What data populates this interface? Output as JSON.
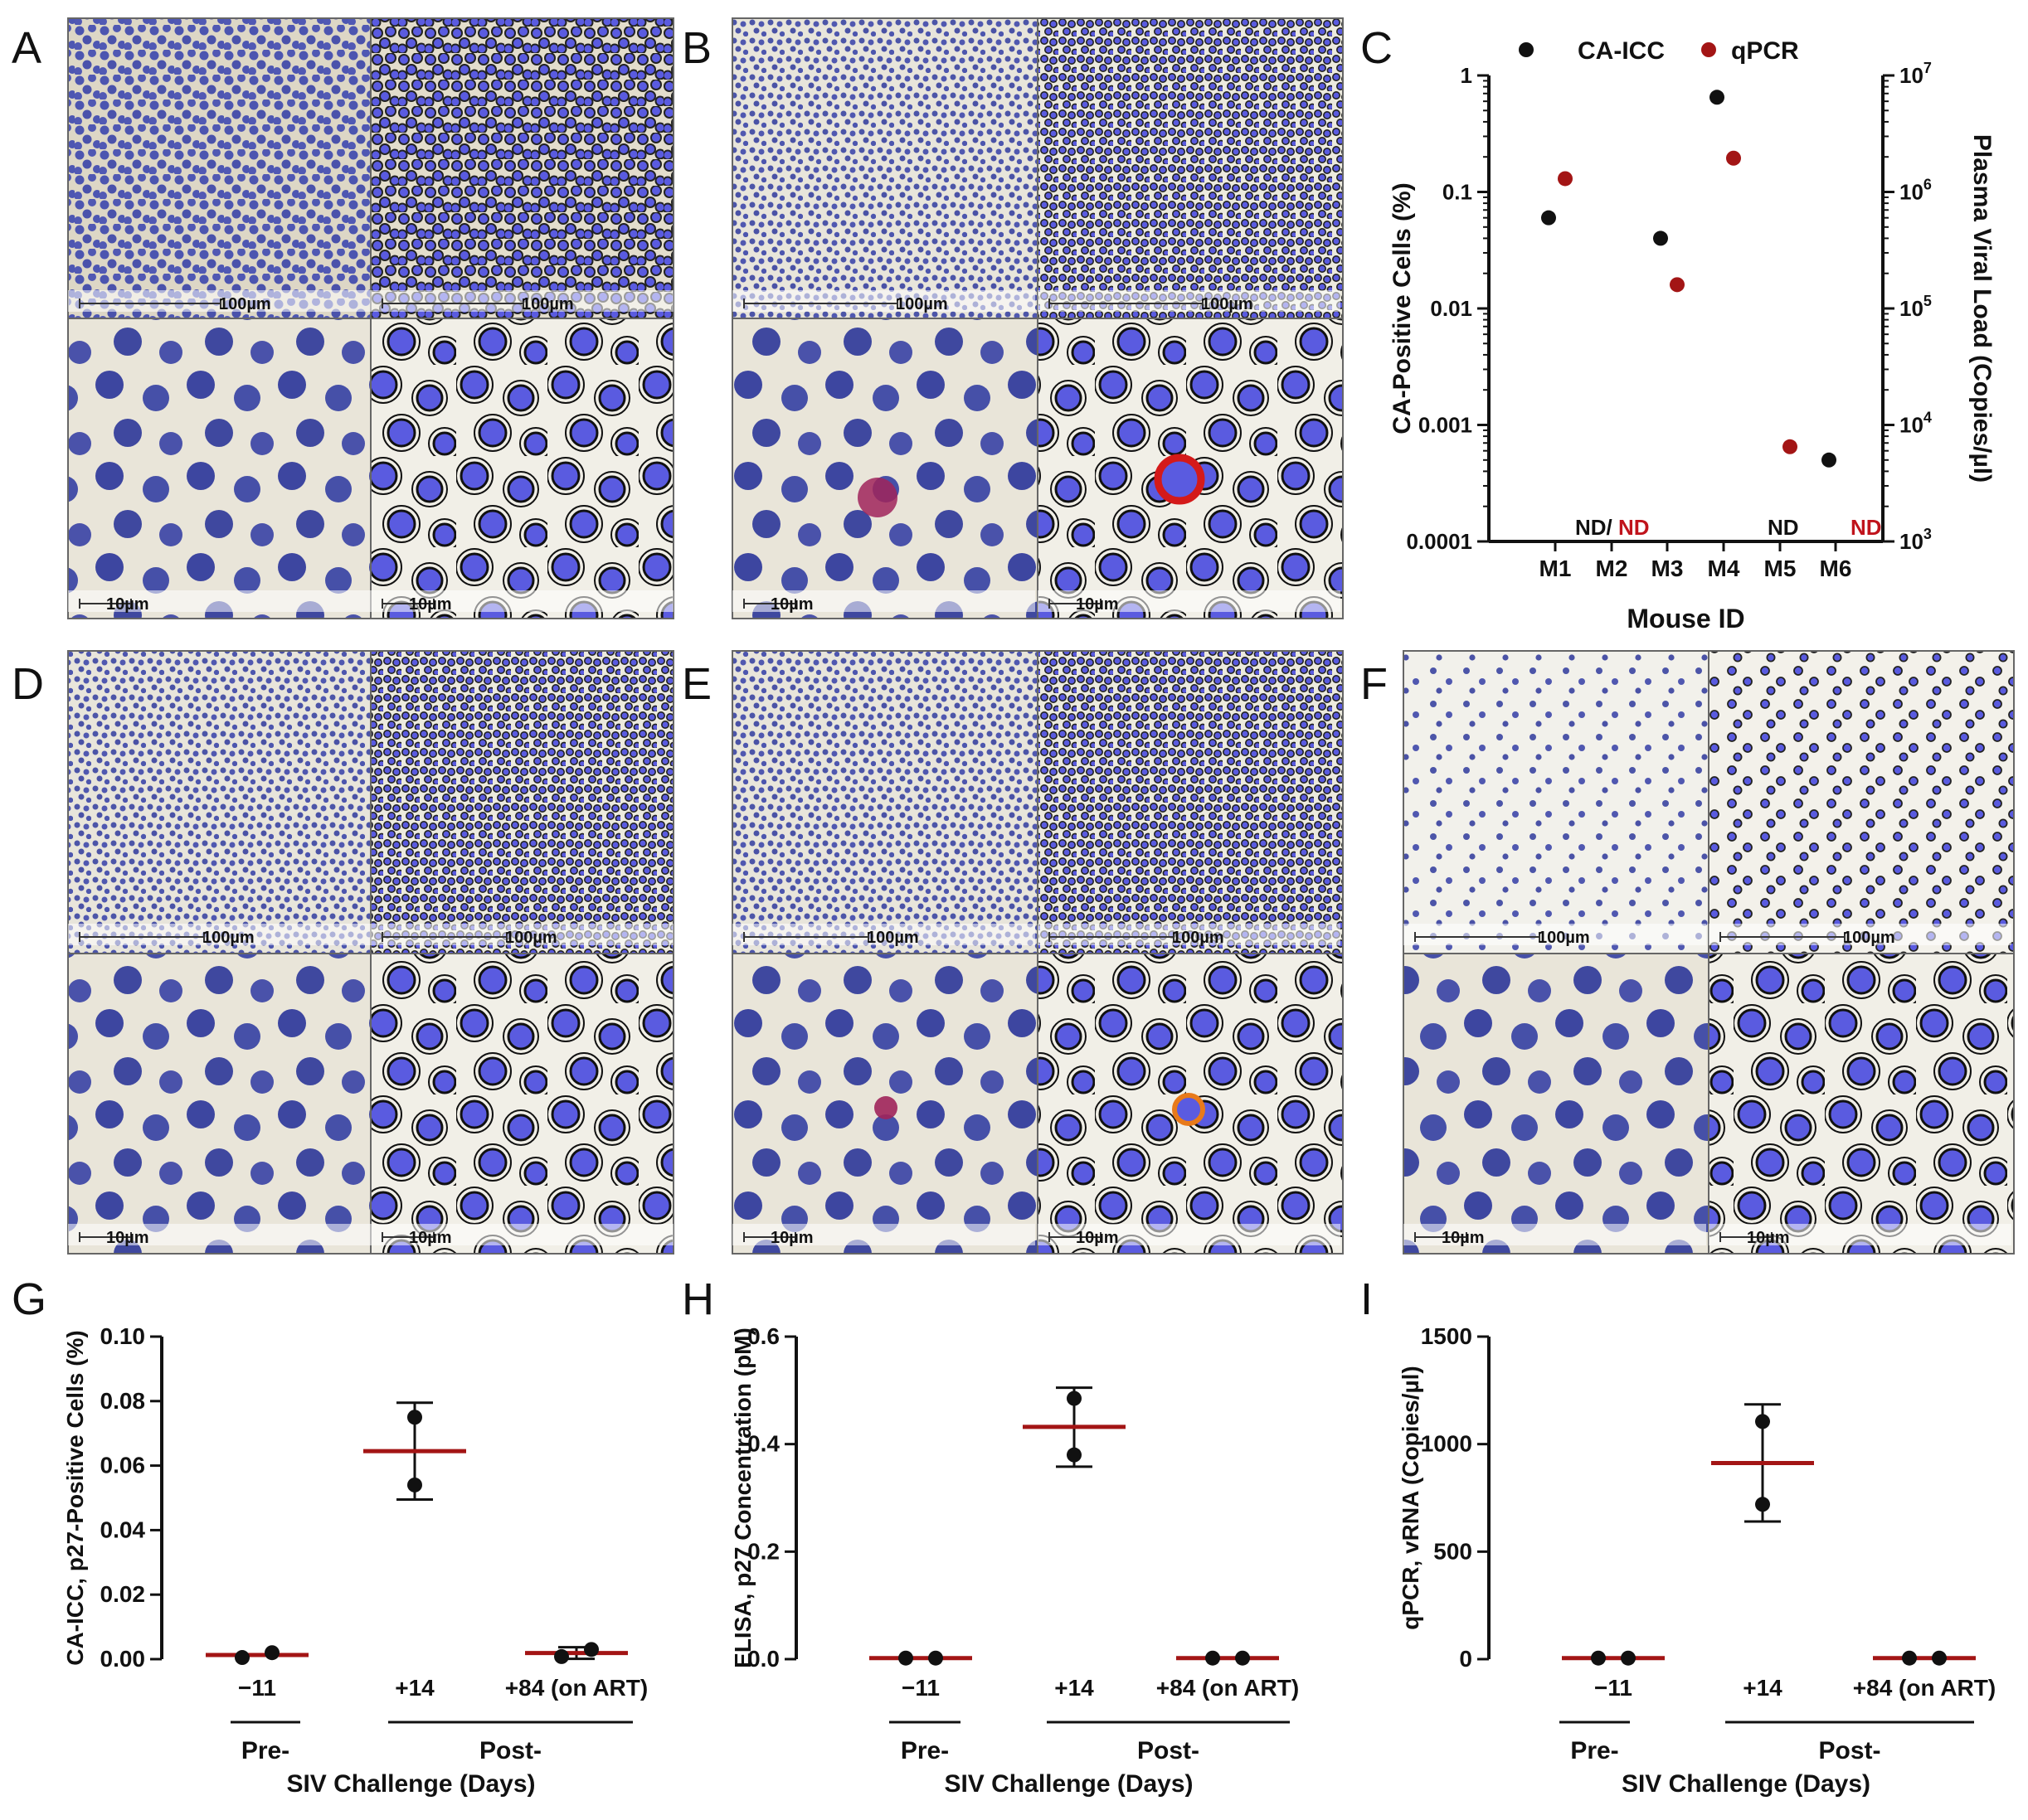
{
  "figure": {
    "panel_labels": [
      "A",
      "B",
      "C",
      "D",
      "E",
      "F",
      "G",
      "H",
      "I"
    ],
    "scale_bars": {
      "large": "100µm",
      "small": "10µm"
    }
  },
  "colors": {
    "black": "#111111",
    "red": "#a31515",
    "red_text": "#c0141c",
    "cell_blue": "#4c55b0",
    "seg_blue": "#5a5be0",
    "bg_tan": "#ddd7c6",
    "bg_light": "#efece2",
    "magenta": "#a0245a",
    "orange": "#e87a1a"
  },
  "chart_data": [
    {
      "panel": "C",
      "type": "scatter",
      "legend": [
        "CA-ICC",
        "qPCR"
      ],
      "legend_position": "top",
      "categories": [
        "M1",
        "M2",
        "M3",
        "M4",
        "M5",
        "M6"
      ],
      "xlabel": "Mouse ID",
      "ylabel_left": "CA-Positive Cells (%)",
      "ylabel_right": "Plasma Viral Load (Copies/µl)",
      "left_axis": {
        "scale": "log",
        "range": [
          0.0001,
          1
        ],
        "ticks": [
          "1",
          "0.1",
          "0.01",
          "0.001",
          "0.0001"
        ]
      },
      "right_axis": {
        "scale": "log",
        "range": [
          1000,
          10000000
        ],
        "ticks_base": "10",
        "ticks_exp": [
          "7",
          "6",
          "5",
          "4",
          "3"
        ]
      },
      "series": [
        {
          "name": "CA-ICC",
          "axis": "left",
          "values": [
            0.06,
            null,
            0.04,
            0.65,
            null,
            0.0005
          ]
        },
        {
          "name": "qPCR",
          "axis": "right",
          "values": [
            1300000,
            null,
            160000,
            1950000,
            6500,
            null
          ]
        }
      ],
      "nd_labels": {
        "m2_black": "ND/",
        "m2_red": "ND",
        "m5_black": "ND",
        "m6_red": "ND"
      }
    },
    {
      "panel": "G",
      "type": "scatter",
      "categories": [
        "−11",
        "+14",
        "+84 (on ART)"
      ],
      "ylabel": "CA-ICC, p27-Positive Cells (%)",
      "ylim": [
        0,
        0.1
      ],
      "yticks": [
        "0.00",
        "0.02",
        "0.04",
        "0.06",
        "0.08",
        "0.10"
      ],
      "points": [
        [
          0.0005,
          0.002
        ],
        [
          0.075,
          0.054
        ],
        [
          0.0008,
          0.003
        ]
      ],
      "means": [
        0.0013,
        0.0645,
        0.0019
      ],
      "sd": [
        null,
        [
          0.0495,
          0.0795
        ],
        [
          0.0001,
          0.0037
        ]
      ],
      "group_labels": {
        "pre": "Pre-",
        "post": "Post-",
        "xlabel": "SIV Challenge (Days)"
      }
    },
    {
      "panel": "H",
      "type": "scatter",
      "categories": [
        "−11",
        "+14",
        "+84 (on ART)"
      ],
      "ylabel": "ELISA, p27 Concentration (pM)",
      "ylim": [
        0,
        0.6
      ],
      "yticks": [
        "0.0",
        "0.2",
        "0.4",
        "0.6"
      ],
      "points": [
        [
          0.002,
          0.002
        ],
        [
          0.485,
          0.38
        ],
        [
          0.002,
          0.002
        ]
      ],
      "means": [
        0.002,
        0.432,
        0.002
      ],
      "sd": [
        null,
        [
          0.358,
          0.505
        ],
        null
      ],
      "group_labels": {
        "pre": "Pre-",
        "post": "Post-",
        "xlabel": "SIV Challenge (Days)"
      }
    },
    {
      "panel": "I",
      "type": "scatter",
      "categories": [
        "−11",
        "+14",
        "+84 (on ART)"
      ],
      "ylabel": "qPCR, vRNA (Copies/µl)",
      "ylim": [
        0,
        1500
      ],
      "yticks": [
        "0",
        "500",
        "1000",
        "1500"
      ],
      "points": [
        [
          5,
          5
        ],
        [
          1105,
          720
        ],
        [
          5,
          5
        ]
      ],
      "means": [
        5,
        912,
        5
      ],
      "sd": [
        null,
        [
          640,
          1185
        ],
        null
      ],
      "group_labels": {
        "pre": "Pre-",
        "post": "Post-",
        "xlabel": "SIV Challenge (Days)"
      }
    }
  ]
}
